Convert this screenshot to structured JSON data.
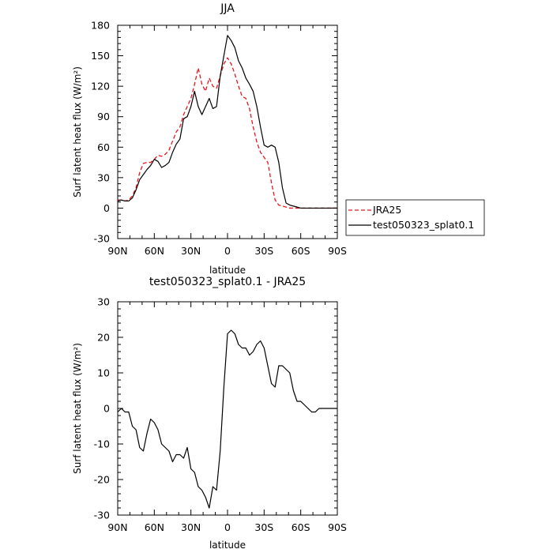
{
  "chart_data": [
    {
      "type": "line",
      "title": "JJA",
      "xlabel": "latitude",
      "ylabel": "Surf latent heat flux (W/m²)",
      "ylim": [
        -30,
        180
      ],
      "yticks": [
        -30,
        0,
        30,
        60,
        90,
        120,
        150,
        180
      ],
      "xlim": [
        90,
        -90
      ],
      "xticks": [
        90,
        60,
        30,
        0,
        -30,
        -60,
        -90
      ],
      "xticklabels": [
        "90N",
        "60N",
        "30N",
        "0",
        "30S",
        "60S",
        "90S"
      ],
      "legend_position": "right",
      "series": [
        {
          "name": "JRA25",
          "color": "#e8161c",
          "dash": "dashed",
          "x": [
            90,
            87,
            84,
            81,
            78,
            75,
            72,
            69,
            66,
            63,
            60,
            57,
            54,
            51,
            48,
            45,
            42,
            39,
            36,
            33,
            30,
            27,
            24,
            21,
            18,
            15,
            12,
            9,
            6,
            3,
            0,
            -3,
            -6,
            -9,
            -12,
            -15,
            -18,
            -21,
            -24,
            -27,
            -30,
            -33,
            -36,
            -39,
            -42,
            -45,
            -48,
            -51,
            -54,
            -57,
            -60,
            -63,
            -66,
            -69,
            -72,
            -75,
            -78,
            -81,
            -84,
            -87,
            -90
          ],
          "y": [
            8,
            8,
            7,
            8,
            12,
            20,
            35,
            44,
            45,
            45,
            48,
            52,
            51,
            53,
            57,
            66,
            75,
            80,
            92,
            100,
            108,
            122,
            138,
            122,
            115,
            128,
            120,
            118,
            130,
            142,
            148,
            142,
            132,
            120,
            110,
            108,
            98,
            80,
            65,
            55,
            50,
            45,
            25,
            8,
            3,
            2,
            1,
            0,
            0,
            0,
            0,
            0,
            0,
            0,
            0,
            0,
            0,
            0,
            0,
            0,
            0
          ]
        },
        {
          "name": "test050323_splat0.1",
          "color": "#000000",
          "dash": "solid",
          "x": [
            90,
            87,
            84,
            81,
            78,
            75,
            72,
            69,
            66,
            63,
            60,
            57,
            54,
            51,
            48,
            45,
            42,
            39,
            36,
            33,
            30,
            27,
            24,
            21,
            18,
            15,
            12,
            9,
            6,
            3,
            0,
            -3,
            -6,
            -9,
            -12,
            -15,
            -18,
            -21,
            -24,
            -27,
            -30,
            -33,
            -36,
            -39,
            -42,
            -45,
            -48,
            -51,
            -54,
            -57,
            -60,
            -63,
            -66,
            -69,
            -72,
            -75,
            -78,
            -81,
            -84,
            -87,
            -90
          ],
          "y": [
            7,
            8,
            7,
            7,
            10,
            18,
            28,
            33,
            38,
            42,
            48,
            46,
            40,
            42,
            45,
            55,
            63,
            68,
            88,
            90,
            100,
            115,
            100,
            92,
            100,
            108,
            98,
            100,
            130,
            150,
            170,
            165,
            158,
            145,
            138,
            128,
            122,
            115,
            100,
            80,
            62,
            60,
            62,
            60,
            45,
            20,
            5,
            3,
            2,
            1,
            0,
            0,
            0,
            0,
            0,
            0,
            0,
            0,
            0,
            0,
            0
          ]
        }
      ]
    },
    {
      "type": "line",
      "title": "test050323_splat0.1 - JRA25",
      "xlabel": "latitude",
      "ylabel": "Surf latent heat flux (W/m²)",
      "ylim": [
        -30,
        30
      ],
      "yticks": [
        -30,
        -20,
        -10,
        0,
        10,
        20,
        30
      ],
      "xlim": [
        90,
        -90
      ],
      "xticks": [
        90,
        60,
        30,
        0,
        -30,
        -60,
        -90
      ],
      "xticklabels": [
        "90N",
        "60N",
        "30N",
        "0",
        "30S",
        "60S",
        "90S"
      ],
      "series": [
        {
          "color": "#000000",
          "dash": "solid",
          "x": [
            90,
            87,
            84,
            81,
            78,
            75,
            72,
            69,
            66,
            63,
            60,
            57,
            54,
            51,
            48,
            45,
            42,
            39,
            36,
            33,
            30,
            27,
            24,
            21,
            18,
            15,
            12,
            9,
            6,
            3,
            0,
            -3,
            -6,
            -9,
            -12,
            -15,
            -18,
            -21,
            -24,
            -27,
            -30,
            -33,
            -36,
            -39,
            -42,
            -45,
            -48,
            -51,
            -54,
            -57,
            -60,
            -63,
            -66,
            -69,
            -72,
            -75,
            -78,
            -81,
            -84,
            -87,
            -90
          ],
          "y": [
            -1,
            0,
            -1,
            -1,
            -5,
            -6,
            -11,
            -12,
            -7,
            -3,
            -4,
            -6,
            -10,
            -11,
            -12,
            -15,
            -13,
            -13,
            -14,
            -11,
            -17,
            -18,
            -22,
            -23,
            -25,
            -28,
            -22,
            -23,
            -12,
            6,
            21,
            22,
            21,
            18,
            17,
            17,
            15,
            16,
            18,
            19,
            17,
            12,
            7,
            6,
            12,
            12,
            11,
            10,
            5,
            2,
            2,
            1,
            0,
            -1,
            -1,
            0,
            0,
            0,
            0,
            0,
            0
          ]
        }
      ]
    }
  ]
}
